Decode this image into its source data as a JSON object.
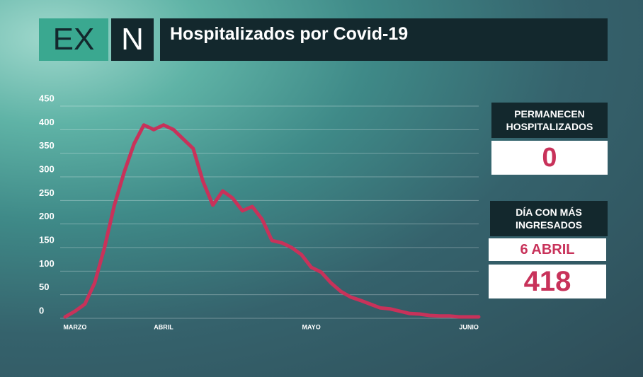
{
  "logo": [
    "EX",
    "N"
  ],
  "chart_data": {
    "type": "line",
    "title": "Hospitalizados por Covid-19",
    "categories": [
      null,
      "MARZO",
      null,
      null,
      null,
      null,
      null,
      null,
      null,
      null,
      "ABRIL",
      null,
      null,
      null,
      null,
      null,
      null,
      null,
      null,
      null,
      null,
      null,
      null,
      null,
      null,
      "MAYO",
      null,
      null,
      null,
      null,
      null,
      null,
      null,
      null,
      null,
      null,
      null,
      null,
      null,
      null,
      null,
      "JUNIO",
      null
    ],
    "values": [
      3,
      15,
      30,
      75,
      150,
      240,
      310,
      370,
      410,
      400,
      410,
      400,
      380,
      360,
      290,
      240,
      270,
      255,
      228,
      237,
      210,
      165,
      160,
      150,
      135,
      108,
      98,
      75,
      57,
      45,
      38,
      30,
      22,
      20,
      15,
      10,
      9,
      6,
      5,
      5,
      3,
      3,
      3
    ],
    "color": "#c8325a",
    "ylim": [
      0,
      450
    ],
    "yticks": [
      0,
      50,
      100,
      150,
      200,
      250,
      300,
      350,
      400,
      450
    ],
    "grid": true
  },
  "panels": {
    "current_label": "PERMANECEN HOSPITALIZADOS",
    "current_value": 0,
    "peak_label": "DÍA CON MÁS INGRESADOS",
    "peak_date": "6 ABRIL",
    "peak_value": 418
  }
}
